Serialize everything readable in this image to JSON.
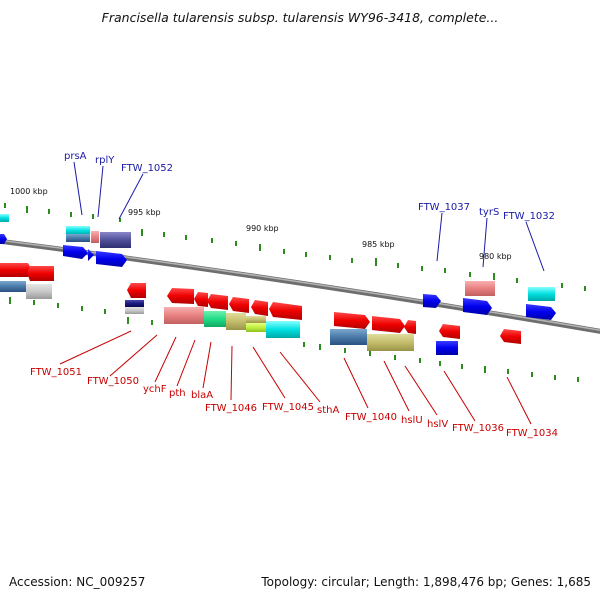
{
  "title": "Francisella tularensis subsp. tularensis WY96-3418, complete...",
  "scale_labels": [
    "1000 kbp",
    "995 kbp",
    "990 kbp",
    "985 kbp",
    "980 kbp"
  ],
  "top_labels": [
    "prsA",
    "rplY",
    "FTW_1052",
    "FTW_1037",
    "tyrS",
    "FTW_1032"
  ],
  "bottom_labels": [
    "FTW_1051",
    "FTW_1050",
    "ychF",
    "pth",
    "blaA",
    "FTW_1046",
    "FTW_1045",
    "sthA",
    "FTW_1040",
    "hslU",
    "hslV",
    "FTW_1036",
    "FTW_1034"
  ],
  "footer": {
    "accession": "Accession: NC_009257",
    "summary": "Topology: circular; Length: 1,898,476 bp; Genes: 1,685"
  },
  "colors": {
    "backbone": "#8a8a8a",
    "label_blue": "#1a1aa8",
    "label_red": "#c80000",
    "tick_green": "#2e8b1e",
    "gene_red": "#ff0000",
    "gene_blue": "#0000ee"
  }
}
